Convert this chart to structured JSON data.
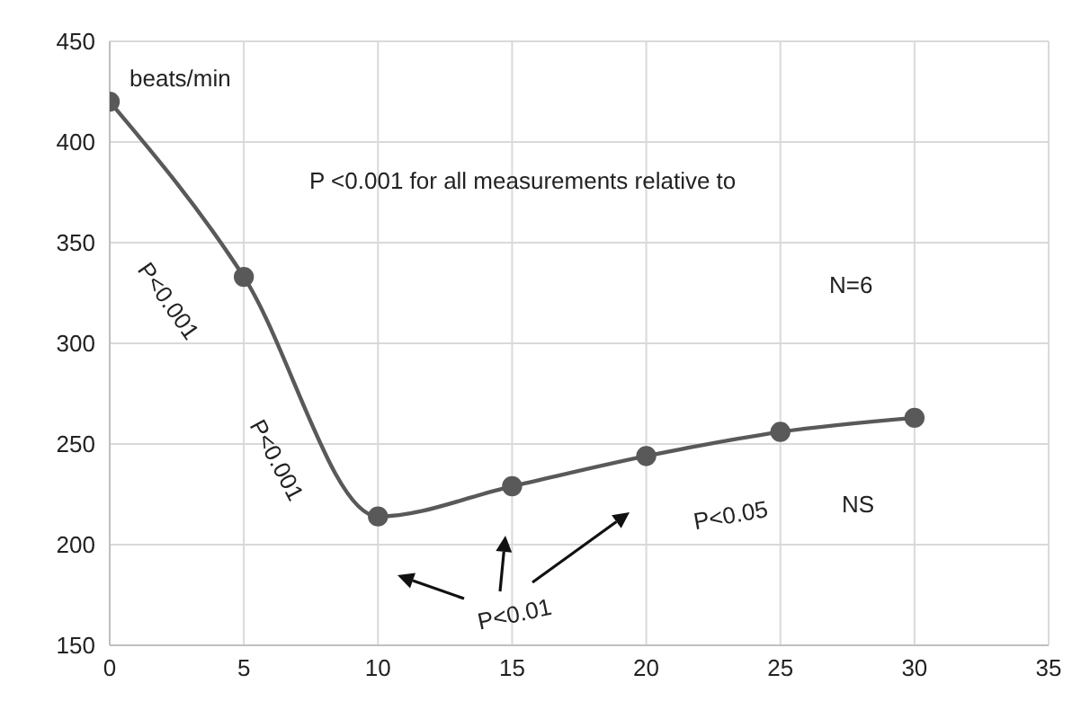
{
  "chart_data": {
    "type": "line",
    "x": [
      0,
      5,
      10,
      15,
      20,
      25,
      30
    ],
    "series": [
      {
        "color": "#595959",
        "values": [
          420,
          333,
          214,
          229,
          244,
          256,
          263
        ]
      }
    ],
    "xlim": [
      0,
      35
    ],
    "xticks": [
      0,
      5,
      10,
      15,
      20,
      25,
      30,
      35
    ],
    "ylim": [
      150,
      450
    ],
    "yticks": [
      150,
      200,
      250,
      300,
      350,
      400,
      450
    ],
    "grid": true,
    "legend": false,
    "marker": "circle",
    "line_style": "solid",
    "annotations": [
      "beats/min",
      "P <0.001 for all measurements relative to",
      "N=6",
      "P<0.001",
      "P<0.001",
      "P<0.01",
      "P<0.05",
      "NS"
    ]
  }
}
